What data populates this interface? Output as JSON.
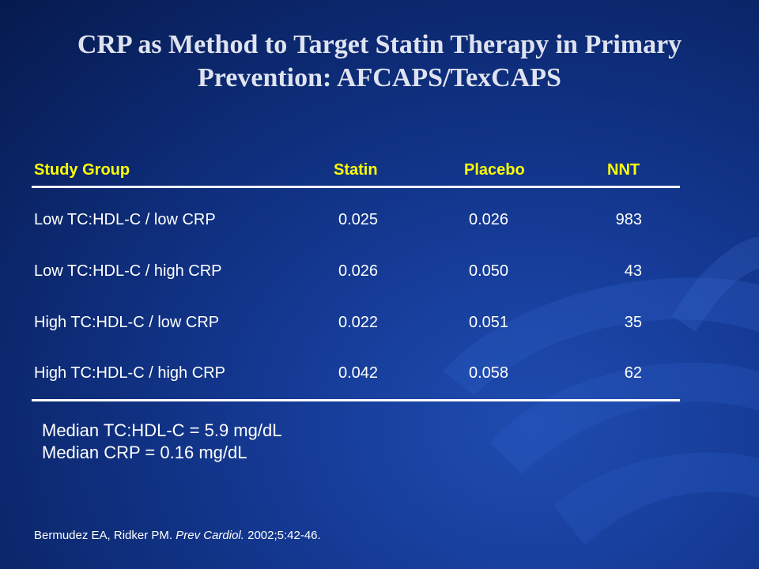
{
  "title": {
    "line1": "CRP as Method to Target Statin Therapy in Primary",
    "line2": "Prevention: AFCAPS/TexCAPS"
  },
  "table": {
    "headers": {
      "group": "Study Group",
      "statin": "Statin",
      "placebo": "Placebo",
      "nnt": "NNT"
    },
    "rows": [
      {
        "group": "Low TC:HDL-C / low CRP",
        "statin": "0.025",
        "placebo": "0.026",
        "nnt": "983"
      },
      {
        "group": "Low TC:HDL-C / high CRP",
        "statin": "0.026",
        "placebo": "0.050",
        "nnt": "43"
      },
      {
        "group": "High TC:HDL-C / low CRP",
        "statin": "0.022",
        "placebo": "0.051",
        "nnt": "35"
      },
      {
        "group": "High TC:HDL-C / high CRP",
        "statin": "0.042",
        "placebo": "0.058",
        "nnt": "62"
      }
    ]
  },
  "notes": {
    "line1": "Median TC:HDL-C = 5.9 mg/dL",
    "line2": "Median CRP = 0.16 mg/dL"
  },
  "citation": {
    "authors": "Bermudez EA, Ridker PM. ",
    "journal": "Prev Cardiol.",
    "details": " 2002;5:42-46."
  },
  "colors": {
    "header_text": "#ffff00",
    "background": "#0e2d7a"
  }
}
